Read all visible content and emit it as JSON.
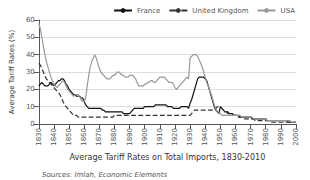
{
  "chart_data": {
    "type": "line",
    "xlabel": "Average Tariff Rates on Total Imports, 1830-2010",
    "ylabel": "Average Tariff Rates (%)",
    "annotations": [
      "Sources: Imlah, Economic Elements"
    ],
    "x": [
      1830,
      1831,
      1832,
      1833,
      1834,
      1835,
      1836,
      1837,
      1838,
      1839,
      1840,
      1841,
      1842,
      1843,
      1844,
      1845,
      1846,
      1847,
      1848,
      1849,
      1850,
      1851,
      1852,
      1853,
      1854,
      1855,
      1856,
      1857,
      1858,
      1859,
      1860,
      1861,
      1862,
      1863,
      1864,
      1865,
      1866,
      1867,
      1868,
      1869,
      1870,
      1871,
      1872,
      1873,
      1874,
      1875,
      1876,
      1877,
      1878,
      1879,
      1880,
      1881,
      1882,
      1883,
      1884,
      1885,
      1886,
      1887,
      1888,
      1889,
      1890,
      1891,
      1892,
      1893,
      1894,
      1895,
      1896,
      1897,
      1898,
      1899,
      1900,
      1901,
      1902,
      1903,
      1904,
      1905,
      1906,
      1907,
      1908,
      1909,
      1910,
      1911,
      1912,
      1913,
      1914,
      1915,
      1916,
      1917,
      1918,
      1919,
      1920,
      1921,
      1922,
      1923,
      1924,
      1925,
      1926,
      1927,
      1928,
      1929,
      1930,
      1931,
      1932,
      1933,
      1934,
      1935,
      1936,
      1937,
      1938,
      1939,
      1940,
      1941,
      1942,
      1943,
      1944,
      1945,
      1946,
      1947,
      1948,
      1949,
      1950,
      1951,
      1952,
      1953,
      1954,
      1955,
      1956,
      1957,
      1958,
      1959,
      1960,
      1961,
      1962,
      1963,
      1964,
      1965,
      1966,
      1967,
      1968,
      1969,
      1970,
      1971,
      1972,
      1973,
      1974,
      1975,
      1976,
      1977,
      1978,
      1979,
      1980,
      1981,
      1982,
      1983,
      1984,
      1985,
      1986,
      1987,
      1988,
      1989,
      1990,
      1991,
      1992,
      1993,
      1994,
      1995,
      1996,
      1997,
      1998,
      1999,
      2000
    ],
    "series": [
      {
        "name": "France",
        "color": "#111111",
        "line_style": "solid",
        "values": [
          22,
          23,
          24,
          23,
          22,
          22,
          22,
          23,
          24,
          23,
          22,
          23,
          24,
          25,
          25,
          26,
          26,
          25,
          23,
          22,
          20,
          19,
          18,
          17,
          17,
          16,
          16,
          16,
          15,
          15,
          13,
          11,
          10,
          9,
          9,
          9,
          9,
          9,
          9,
          9,
          9,
          9,
          8,
          8,
          7,
          7,
          7,
          7,
          7,
          7,
          7,
          7,
          7,
          7,
          7,
          7,
          6,
          6,
          6,
          6,
          6,
          7,
          8,
          9,
          9,
          9,
          9,
          9,
          9,
          9,
          10,
          10,
          10,
          10,
          10,
          10,
          10,
          11,
          11,
          11,
          11,
          11,
          11,
          11,
          11,
          10,
          10,
          10,
          10,
          9,
          9,
          9,
          9,
          9,
          10,
          10,
          10,
          10,
          10,
          9,
          12,
          14,
          17,
          20,
          23,
          26,
          27,
          27,
          27,
          27,
          26,
          25,
          22,
          19,
          16,
          13,
          10,
          8,
          7,
          6,
          10,
          9,
          8,
          7,
          7,
          7,
          6,
          6,
          6,
          5,
          5,
          5,
          5,
          4,
          4,
          4,
          4,
          4,
          4,
          4,
          4,
          3,
          3,
          3,
          3,
          3,
          3,
          3,
          3,
          3,
          3,
          2,
          2,
          2,
          2,
          2,
          2,
          2,
          2,
          2,
          2,
          2,
          2,
          2,
          2,
          1,
          1,
          1,
          1,
          1,
          1
        ]
      },
      {
        "name": "United Kingdom",
        "color": "#333333",
        "line_style": "dashed",
        "values": [
          35,
          34,
          32,
          30,
          28,
          26,
          25,
          24,
          23,
          22,
          21,
          20,
          19,
          18,
          17,
          15,
          13,
          11,
          10,
          9,
          8,
          7,
          6,
          5,
          5,
          5,
          4,
          4,
          4,
          4,
          4,
          4,
          4,
          4,
          4,
          4,
          4,
          4,
          4,
          4,
          4,
          4,
          4,
          4,
          4,
          4,
          4,
          4,
          4,
          4,
          5,
          5,
          5,
          5,
          5,
          5,
          5,
          5,
          5,
          5,
          5,
          5,
          5,
          5,
          5,
          5,
          5,
          5,
          5,
          5,
          5,
          5,
          5,
          5,
          5,
          5,
          5,
          5,
          5,
          5,
          5,
          5,
          5,
          5,
          5,
          5,
          5,
          5,
          5,
          5,
          5,
          5,
          5,
          5,
          5,
          5,
          5,
          5,
          5,
          5,
          5,
          6,
          7,
          8,
          8,
          8,
          8,
          8,
          8,
          8,
          8,
          8,
          8,
          8,
          8,
          8,
          8,
          9,
          10,
          10,
          10,
          9,
          8,
          7,
          7,
          6,
          6,
          5,
          5,
          5,
          5,
          5,
          4,
          4,
          4,
          4,
          3,
          3,
          3,
          3,
          3,
          3,
          3,
          2,
          2,
          2,
          2,
          2,
          2,
          2,
          2,
          2,
          2,
          2,
          1,
          1,
          1,
          1,
          1,
          1,
          1,
          1,
          1,
          1,
          1,
          1,
          1,
          1,
          1,
          1,
          1
        ]
      },
      {
        "name": "USA",
        "color": "#999999",
        "line_style": "solid",
        "values": [
          58,
          55,
          50,
          45,
          40,
          36,
          33,
          30,
          27,
          25,
          23,
          22,
          21,
          22,
          23,
          24,
          25,
          24,
          22,
          20,
          19,
          18,
          17,
          16,
          17,
          17,
          17,
          16,
          14,
          13,
          13,
          15,
          22,
          28,
          33,
          36,
          38,
          40,
          38,
          35,
          32,
          30,
          29,
          28,
          27,
          26,
          26,
          26,
          27,
          28,
          28,
          29,
          30,
          30,
          29,
          28,
          28,
          27,
          27,
          27,
          28,
          28,
          28,
          27,
          26,
          24,
          22,
          22,
          22,
          22,
          23,
          23,
          24,
          24,
          25,
          25,
          24,
          24,
          25,
          26,
          27,
          27,
          27,
          27,
          26,
          25,
          24,
          24,
          24,
          23,
          21,
          20,
          21,
          22,
          23,
          24,
          25,
          26,
          27,
          26,
          38,
          39,
          40,
          40,
          40,
          39,
          37,
          35,
          33,
          30,
          27,
          24,
          22,
          19,
          17,
          14,
          11,
          9,
          7,
          6,
          6,
          5,
          5,
          5,
          5,
          5,
          5,
          5,
          5,
          5,
          5,
          5,
          5,
          5,
          4,
          4,
          4,
          4,
          4,
          4,
          4,
          4,
          3,
          3,
          3,
          3,
          3,
          3,
          3,
          3,
          3,
          2,
          2,
          2,
          2,
          2,
          2,
          2,
          2,
          2,
          2,
          2,
          2,
          2,
          2,
          2,
          2,
          1,
          1,
          1,
          1
        ]
      }
    ],
    "xlim": [
      1830,
      2000
    ],
    "xticks": [
      1830,
      1840,
      1850,
      1860,
      1870,
      1880,
      1890,
      1900,
      1910,
      1920,
      1930,
      1940,
      1950,
      1960,
      1970,
      1980,
      1990,
      2000
    ],
    "ylim": [
      0,
      60
    ],
    "yticks": [
      0,
      10,
      20,
      30,
      40,
      50,
      60
    ],
    "grid": true,
    "legend": "upper right"
  }
}
